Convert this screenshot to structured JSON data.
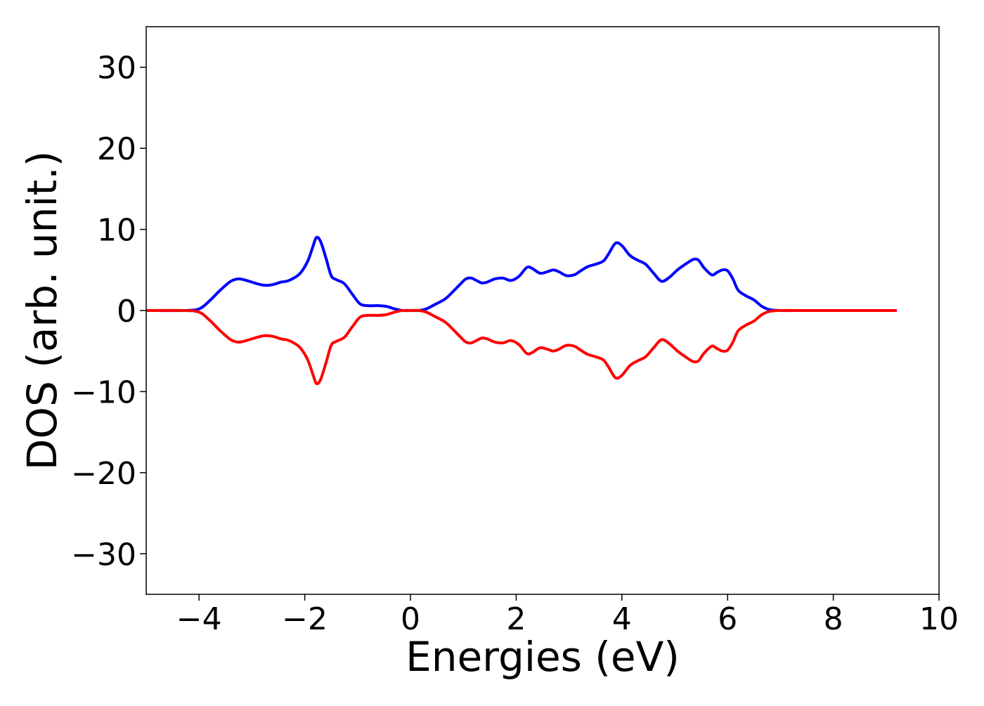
{
  "chart_data": {
    "type": "line",
    "title": "",
    "xlabel": "Energies (eV)",
    "ylabel": "DOS (arb. unit.)",
    "xlim": [
      -5,
      10
    ],
    "ylim": [
      -35,
      35
    ],
    "xticks": [
      -4,
      -2,
      0,
      2,
      4,
      6,
      8,
      10
    ],
    "yticks": [
      -30,
      -20,
      -10,
      0,
      10,
      20,
      30
    ],
    "xtick_labels": [
      "−4",
      "−2",
      "0",
      "2",
      "4",
      "6",
      "8",
      "10"
    ],
    "ytick_labels": [
      "−30",
      "−20",
      "−10",
      "0",
      "10",
      "20",
      "30"
    ],
    "grid": false,
    "legend": "none",
    "series": [
      {
        "color": "#0000ff",
        "x": [
          -5.0,
          -4.3,
          -4.0,
          -3.8,
          -3.6,
          -3.4,
          -3.25,
          -3.1,
          -2.9,
          -2.75,
          -2.6,
          -2.45,
          -2.3,
          -2.1,
          -1.95,
          -1.85,
          -1.78,
          -1.7,
          -1.6,
          -1.5,
          -1.4,
          -1.25,
          -1.1,
          -0.95,
          -0.8,
          -0.6,
          -0.45,
          -0.3,
          -0.15,
          0.0,
          0.15,
          0.3,
          0.45,
          0.65,
          0.8,
          0.95,
          1.05,
          1.15,
          1.25,
          1.35,
          1.45,
          1.6,
          1.75,
          1.9,
          2.05,
          2.2,
          2.3,
          2.45,
          2.6,
          2.7,
          2.8,
          2.95,
          3.1,
          3.2,
          3.35,
          3.5,
          3.65,
          3.75,
          3.88,
          4.0,
          4.15,
          4.3,
          4.45,
          4.6,
          4.75,
          4.9,
          5.05,
          5.2,
          5.35,
          5.45,
          5.55,
          5.7,
          5.8,
          5.9,
          6.0,
          6.1,
          6.2,
          6.35,
          6.5,
          6.65,
          6.8,
          7.0,
          7.5,
          8.0,
          8.5,
          9.2
        ],
        "y": [
          0,
          0,
          0.2,
          1.2,
          2.5,
          3.6,
          3.9,
          3.7,
          3.3,
          3.1,
          3.2,
          3.5,
          3.7,
          4.5,
          6.0,
          7.8,
          9.0,
          8.5,
          6.5,
          4.3,
          3.8,
          3.3,
          2.0,
          0.8,
          0.6,
          0.6,
          0.5,
          0.2,
          0.0,
          0.0,
          0.0,
          0.2,
          0.7,
          1.4,
          2.3,
          3.3,
          3.9,
          4.0,
          3.7,
          3.4,
          3.5,
          3.9,
          4.0,
          3.7,
          4.2,
          5.3,
          5.2,
          4.6,
          4.8,
          5.0,
          4.8,
          4.3,
          4.4,
          4.8,
          5.4,
          5.7,
          6.1,
          7.0,
          8.3,
          8.0,
          6.8,
          6.2,
          5.7,
          4.6,
          3.6,
          4.1,
          5.0,
          5.7,
          6.3,
          6.2,
          5.3,
          4.4,
          4.7,
          5.0,
          4.9,
          3.9,
          2.5,
          1.8,
          1.3,
          0.5,
          0.1,
          0.0,
          0.0,
          0.0,
          0.0,
          0.0
        ]
      },
      {
        "color": "#ff0000",
        "x": [
          -5.0,
          -4.3,
          -4.0,
          -3.8,
          -3.6,
          -3.4,
          -3.25,
          -3.1,
          -2.9,
          -2.75,
          -2.6,
          -2.45,
          -2.3,
          -2.1,
          -1.95,
          -1.85,
          -1.78,
          -1.7,
          -1.6,
          -1.5,
          -1.4,
          -1.25,
          -1.1,
          -0.95,
          -0.8,
          -0.6,
          -0.45,
          -0.3,
          -0.15,
          0.0,
          0.15,
          0.3,
          0.45,
          0.65,
          0.8,
          0.95,
          1.05,
          1.15,
          1.25,
          1.35,
          1.45,
          1.6,
          1.75,
          1.9,
          2.05,
          2.2,
          2.3,
          2.45,
          2.6,
          2.7,
          2.8,
          2.95,
          3.1,
          3.2,
          3.35,
          3.5,
          3.65,
          3.75,
          3.88,
          4.0,
          4.15,
          4.3,
          4.45,
          4.6,
          4.75,
          4.9,
          5.05,
          5.2,
          5.35,
          5.45,
          5.55,
          5.7,
          5.8,
          5.9,
          6.0,
          6.1,
          6.2,
          6.35,
          6.5,
          6.65,
          6.8,
          7.0,
          7.5,
          8.0,
          8.5,
          9.2
        ],
        "y": [
          0,
          0,
          -0.2,
          -1.2,
          -2.5,
          -3.6,
          -3.9,
          -3.7,
          -3.3,
          -3.1,
          -3.2,
          -3.5,
          -3.7,
          -4.5,
          -6.0,
          -7.8,
          -9.0,
          -8.5,
          -6.5,
          -4.3,
          -3.8,
          -3.3,
          -2.0,
          -0.8,
          -0.6,
          -0.6,
          -0.5,
          -0.2,
          0.0,
          0.0,
          0.0,
          -0.2,
          -0.7,
          -1.4,
          -2.3,
          -3.3,
          -3.9,
          -4.0,
          -3.7,
          -3.4,
          -3.5,
          -3.9,
          -4.0,
          -3.7,
          -4.2,
          -5.3,
          -5.2,
          -4.6,
          -4.8,
          -5.0,
          -4.8,
          -4.3,
          -4.4,
          -4.8,
          -5.4,
          -5.7,
          -6.1,
          -7.0,
          -8.3,
          -8.0,
          -6.8,
          -6.2,
          -5.7,
          -4.6,
          -3.6,
          -4.1,
          -5.0,
          -5.7,
          -6.3,
          -6.2,
          -5.3,
          -4.4,
          -4.7,
          -5.0,
          -4.9,
          -3.9,
          -2.5,
          -1.8,
          -1.3,
          -0.5,
          -0.1,
          0.0,
          0.0,
          0.0,
          0.0,
          0.0
        ]
      }
    ]
  }
}
